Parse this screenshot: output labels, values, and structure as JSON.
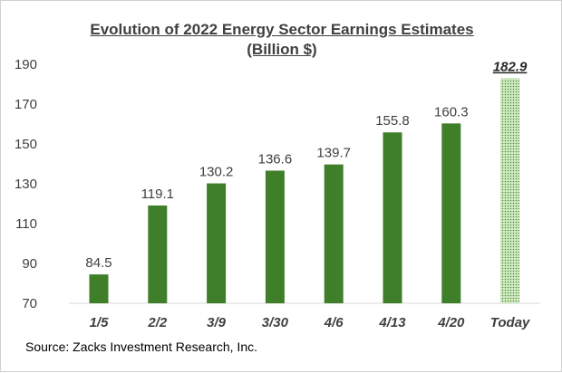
{
  "chart_data": {
    "type": "bar",
    "title": "Evolution of 2022 Energy Sector Earnings Estimates",
    "subtitle": "(Billion $)",
    "categories": [
      "1/5",
      "2/2",
      "3/9",
      "3/30",
      "4/6",
      "4/13",
      "4/20",
      "Today"
    ],
    "values": [
      84.5,
      119.1,
      130.2,
      136.6,
      139.7,
      155.8,
      160.3,
      182.9
    ],
    "labels": [
      "84.5",
      "119.1",
      "130.2",
      "136.6",
      "139.7",
      "155.8",
      "160.3",
      "182.9"
    ],
    "ylim": [
      70,
      190
    ],
    "yticks": [
      "70",
      "90",
      "110",
      "130",
      "150",
      "170",
      "190"
    ],
    "grid": false,
    "bar_color": "#3f7f2a",
    "highlight_color": "#a6d18f",
    "highlight_category": "Today",
    "xlabel": "",
    "ylabel": ""
  },
  "source": "Source: Zacks Investment Research, Inc."
}
